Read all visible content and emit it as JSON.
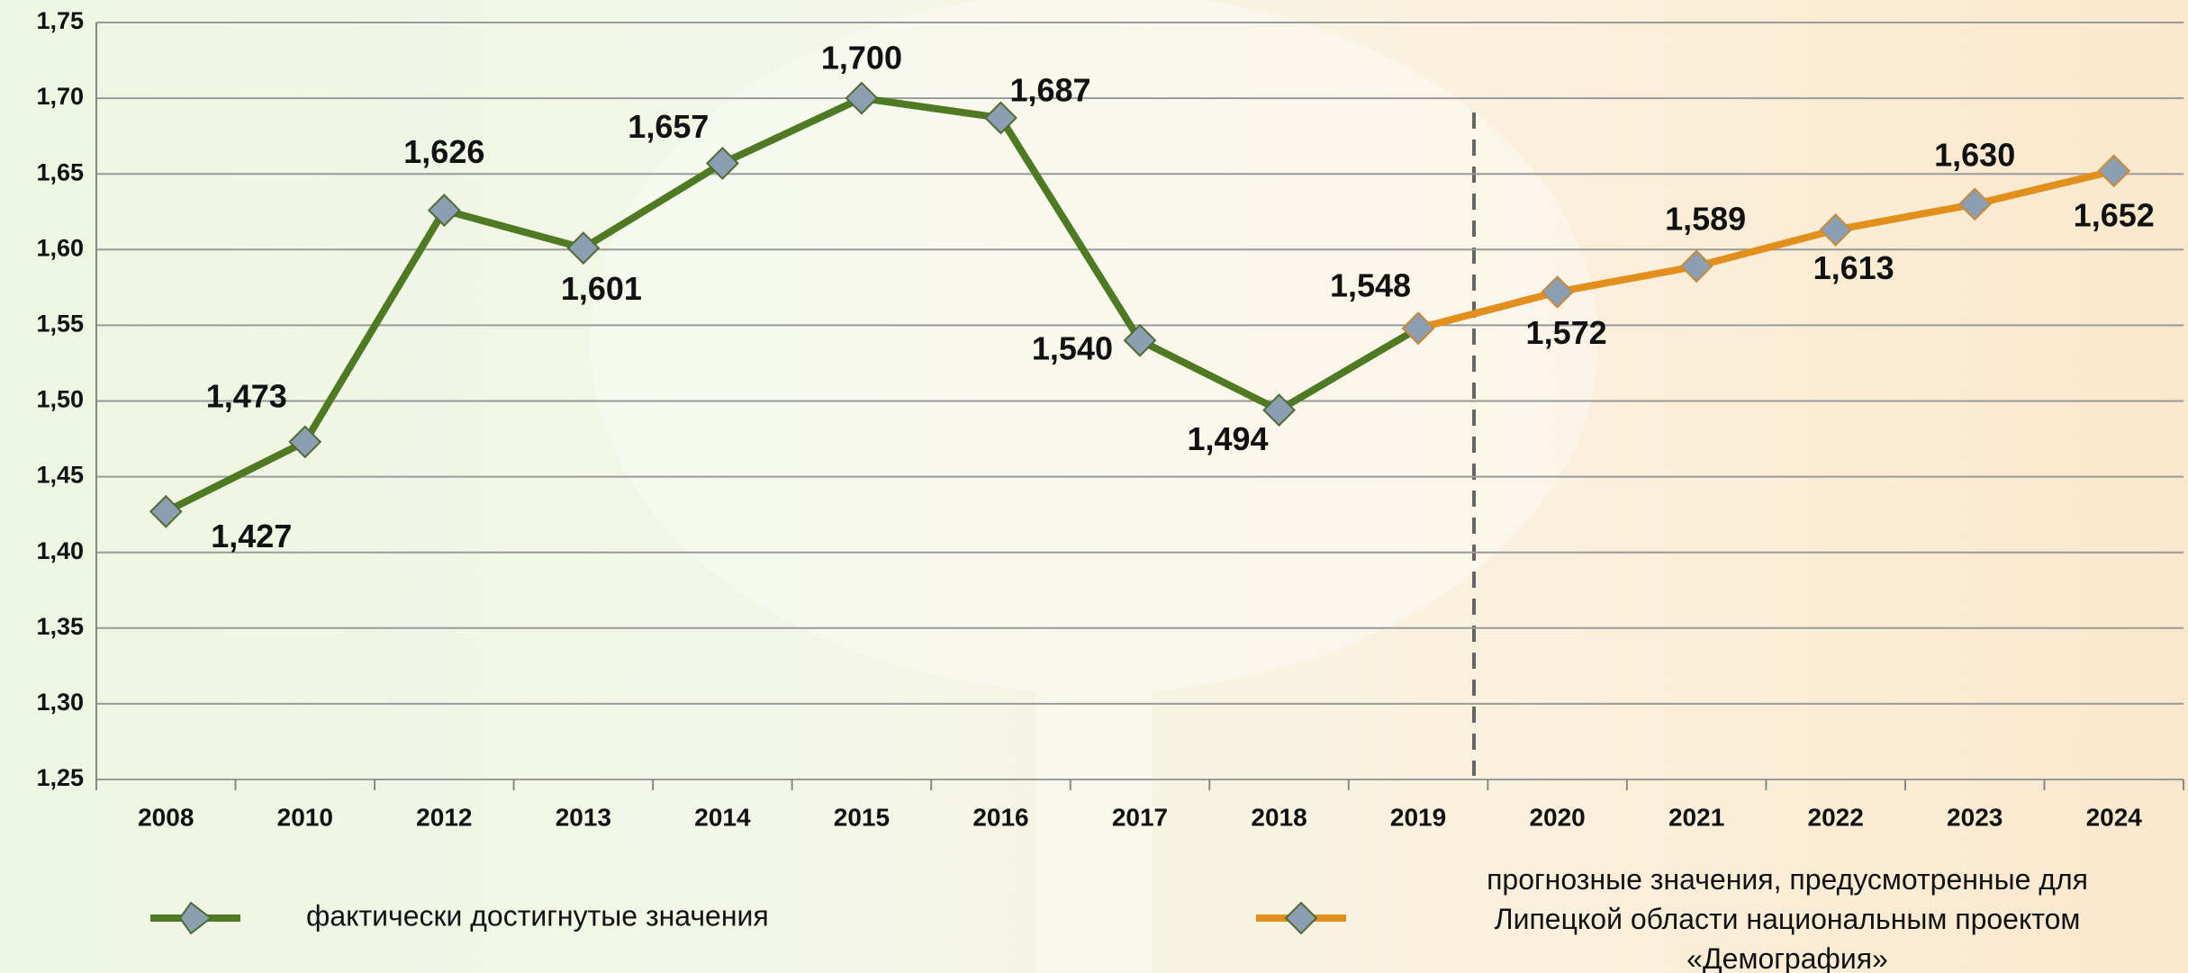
{
  "chart_data": {
    "type": "line",
    "categories": [
      "2008",
      "2010",
      "2012",
      "2013",
      "2014",
      "2015",
      "2016",
      "2017",
      "2018",
      "2019",
      "2020",
      "2021",
      "2022",
      "2023",
      "2024"
    ],
    "series": [
      {
        "name": "фактически достигнутые значения",
        "color": "#4f7a23",
        "values": [
          1.427,
          1.473,
          1.626,
          1.601,
          1.657,
          1.7,
          1.687,
          1.54,
          1.494,
          1.548,
          null,
          null,
          null,
          null,
          null
        ],
        "value_labels": [
          "1,427",
          "1,473",
          "1,626",
          "1,601",
          "1,657",
          "1,700",
          "1,687",
          "1,540",
          "1,494",
          "1,548",
          null,
          null,
          null,
          null,
          null
        ]
      },
      {
        "name": "прогнозные значения, предусмотренные для Липецкой области национальным проектом «Демография»",
        "color": "#e28f1e",
        "values": [
          null,
          null,
          null,
          null,
          null,
          null,
          null,
          null,
          null,
          1.548,
          1.572,
          1.589,
          1.613,
          1.63,
          1.652
        ],
        "value_labels": [
          null,
          null,
          null,
          null,
          null,
          null,
          null,
          null,
          null,
          null,
          "1,572",
          "1,589",
          "1,613",
          "1,630",
          "1,652"
        ]
      }
    ],
    "ylim": [
      1.25,
      1.75
    ],
    "yticks": [
      {
        "value": 1.25,
        "label": "1,25"
      },
      {
        "value": 1.3,
        "label": "1,30"
      },
      {
        "value": 1.35,
        "label": "1,35"
      },
      {
        "value": 1.4,
        "label": "1,40"
      },
      {
        "value": 1.45,
        "label": "1,45"
      },
      {
        "value": 1.5,
        "label": "1,50"
      },
      {
        "value": 1.55,
        "label": "1,55"
      },
      {
        "value": 1.6,
        "label": "1,60"
      },
      {
        "value": 1.65,
        "label": "1,65"
      },
      {
        "value": 1.7,
        "label": "1,70"
      },
      {
        "value": 1.75,
        "label": "1,75"
      }
    ],
    "grid": true
  }
}
